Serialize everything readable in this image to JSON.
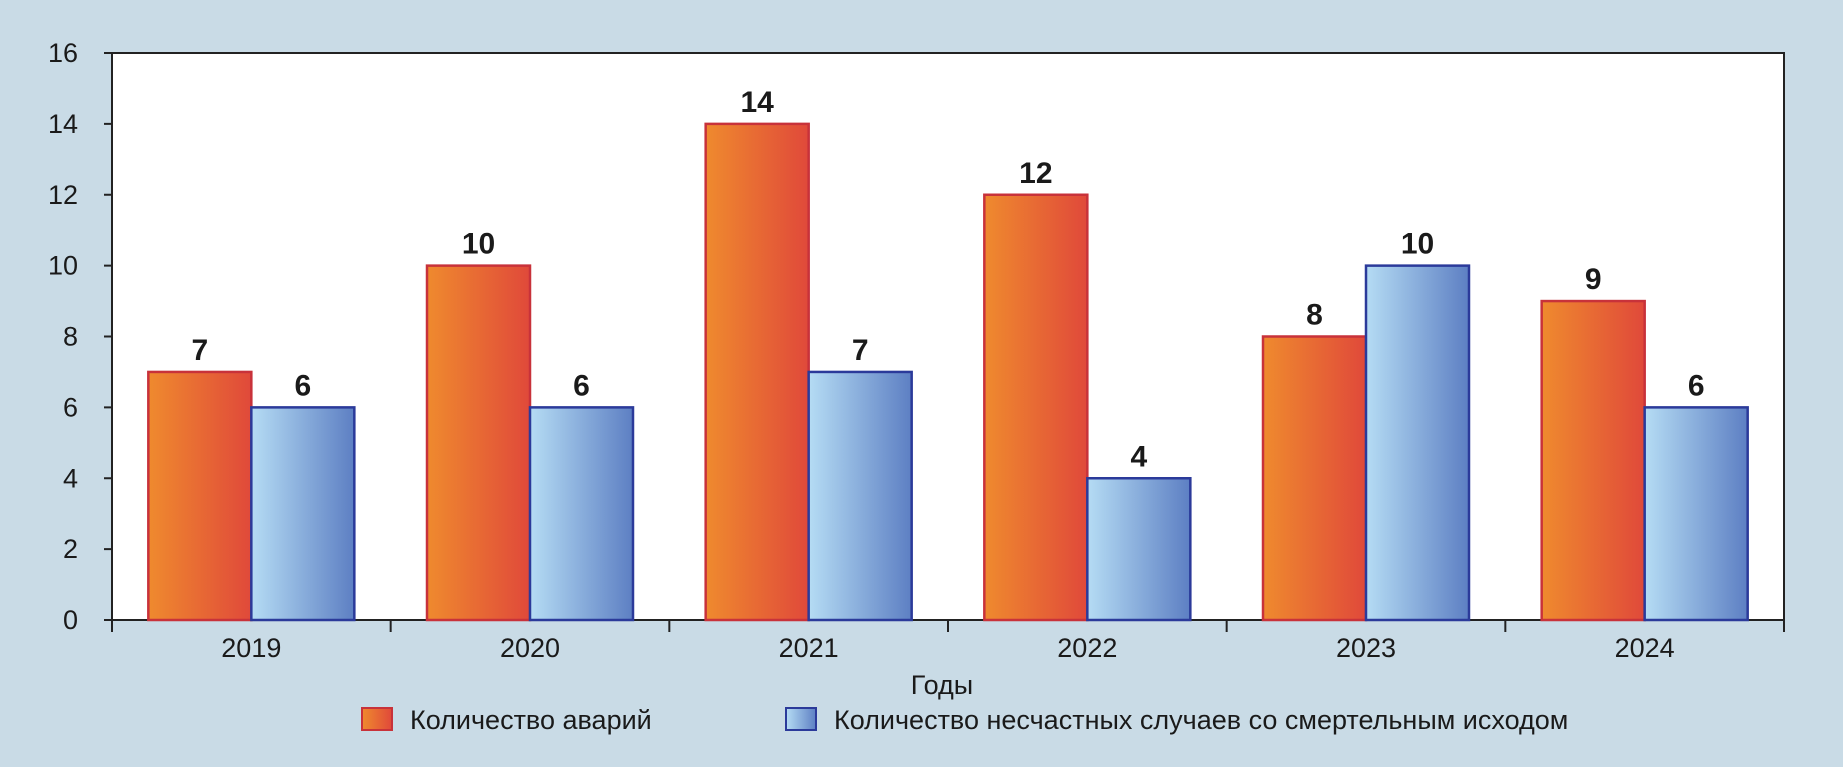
{
  "chart_data": {
    "type": "bar",
    "title": "",
    "xlabel": "Годы",
    "ylabel": "",
    "categories": [
      "2019",
      "2020",
      "2021",
      "2022",
      "2023",
      "2024"
    ],
    "ylim": [
      0,
      16
    ],
    "yticks": [
      0,
      2,
      4,
      6,
      8,
      10,
      12,
      14,
      16
    ],
    "grid": false,
    "legend_position": "bottom",
    "series": [
      {
        "name": "Количество аварий",
        "values": [
          7,
          10,
          14,
          12,
          8,
          9
        ],
        "color": "#e8603a"
      },
      {
        "name": "Количество несчастных случаев со смертельным исходом",
        "values": [
          6,
          6,
          7,
          4,
          10,
          6
        ],
        "color": "#6f94cf"
      }
    ]
  },
  "colors": {
    "background": "#c9dbe6",
    "plot_area": "#ffffff",
    "orange_start": "#ef8a2e",
    "orange_end": "#e0493a",
    "orange_border": "#c8323a",
    "blue_start": "#b5dcf4",
    "blue_end": "#5d7fc3",
    "blue_border": "#2b3a9a"
  }
}
